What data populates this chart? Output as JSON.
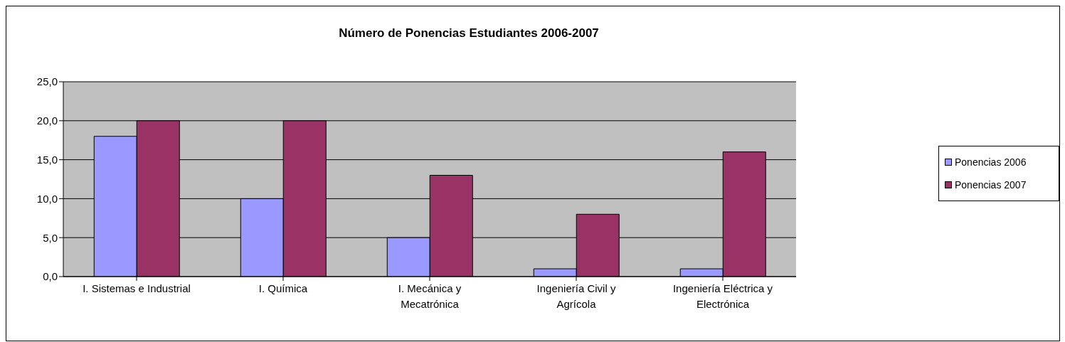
{
  "chart_data": {
    "type": "bar",
    "title": "Número de Ponencias Estudiantes 2006-2007",
    "categories": [
      "I. Sistemas e Industrial",
      "I. Química",
      "I. Mecánica y Mecatrónica",
      "Ingeniería Civil y Agrícola",
      "Ingeniería Eléctrica y Electrónica"
    ],
    "series": [
      {
        "name": "Ponencias 2006",
        "color": "#9999ff",
        "values": [
          18,
          10,
          5,
          1,
          1
        ]
      },
      {
        "name": "Ponencias 2007",
        "color": "#993366",
        "values": [
          20,
          20,
          13,
          8,
          16
        ]
      }
    ],
    "ylim": [
      0,
      25
    ],
    "yticks": [
      {
        "value": 0,
        "label": "0,0"
      },
      {
        "value": 5,
        "label": "5,0"
      },
      {
        "value": 10,
        "label": "10,0"
      },
      {
        "value": 15,
        "label": "15,0"
      },
      {
        "value": 20,
        "label": "20,0"
      },
      {
        "value": 25,
        "label": "25,0"
      }
    ],
    "grid": "y",
    "legend": "right"
  }
}
